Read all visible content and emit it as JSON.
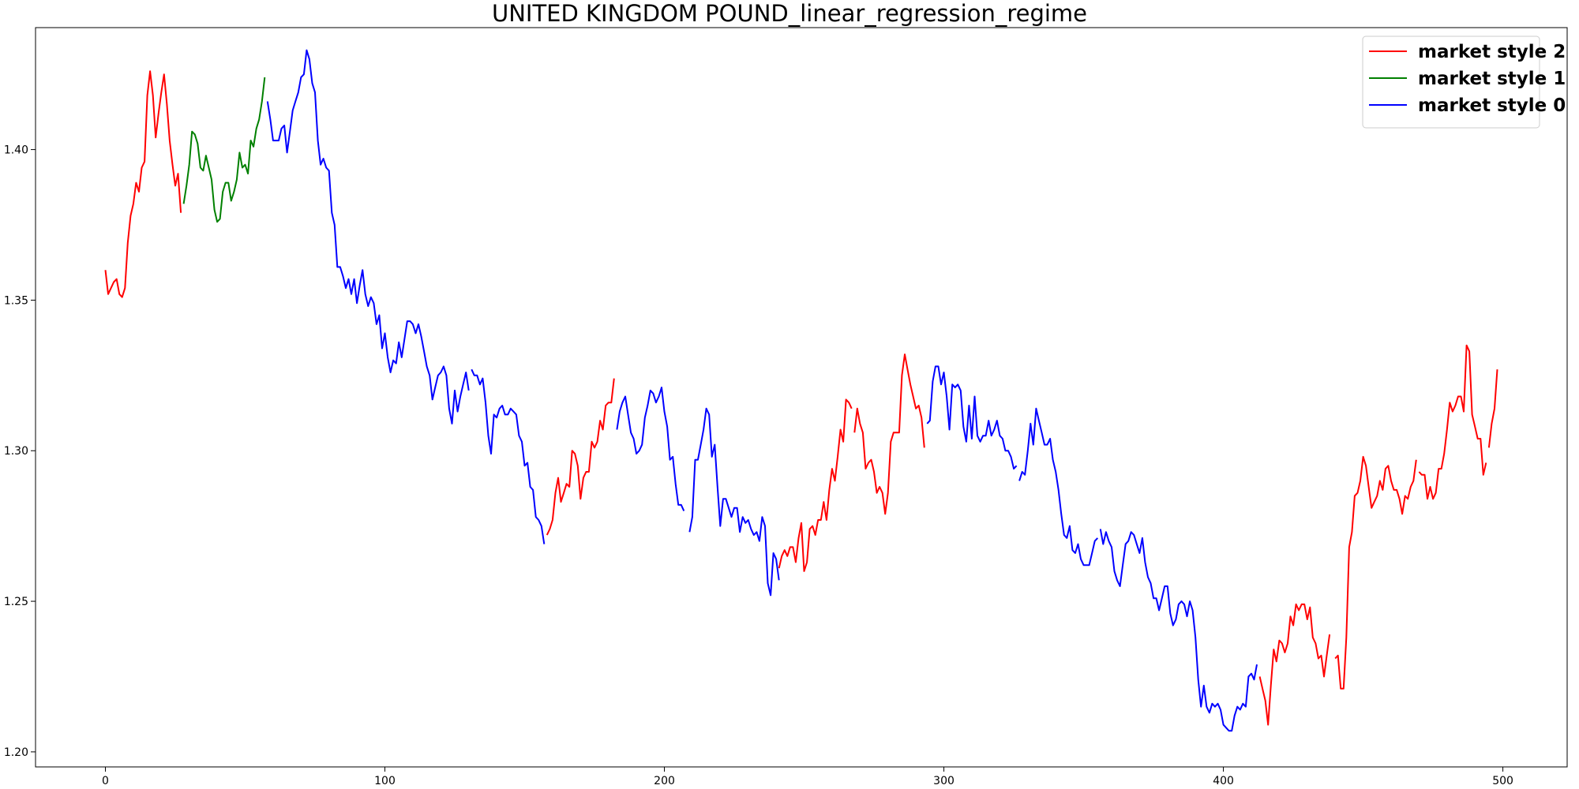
{
  "chart_data": {
    "type": "line",
    "title": "UNITED KINGDOM POUND_linear_regression_regime",
    "xlabel": "",
    "ylabel": "",
    "xlim": [
      -25,
      523
    ],
    "ylim": [
      1.195,
      1.4405
    ],
    "x_ticks": [
      0,
      100,
      200,
      300,
      400,
      500
    ],
    "y_ticks": [
      1.2,
      1.25,
      1.3,
      1.35,
      1.4
    ],
    "y_tick_labels": [
      "1.20",
      "1.25",
      "1.30",
      "1.35",
      "1.40"
    ],
    "grid": false,
    "legend_position": "top-right",
    "legend": [
      {
        "label": "market style 2",
        "color": "#ff0000"
      },
      {
        "label": "market style 1",
        "color": "#008000"
      },
      {
        "label": "market style 0",
        "color": "#0000ff"
      }
    ],
    "segments": [
      {
        "style": 2,
        "color": "#ff0000",
        "x_start": 0,
        "y": [
          1.36,
          1.352,
          1.354,
          1.356,
          1.357,
          1.352,
          1.351,
          1.354,
          1.369,
          1.378,
          1.382,
          1.389,
          1.386,
          1.394,
          1.396,
          1.418,
          1.426,
          1.418,
          1.404,
          1.412,
          1.419,
          1.425,
          1.415,
          1.403,
          1.395,
          1.388,
          1.392,
          1.379
        ]
      },
      {
        "style": 1,
        "color": "#008000",
        "x_start": 28,
        "y": [
          1.382,
          1.388,
          1.395,
          1.406,
          1.405,
          1.402,
          1.394,
          1.393,
          1.398,
          1.394,
          1.39,
          1.38,
          1.376,
          1.377,
          1.386,
          1.389,
          1.389,
          1.383,
          1.386,
          1.39,
          1.399,
          1.394,
          1.395,
          1.392,
          1.403,
          1.401,
          1.407,
          1.41,
          1.416,
          1.424
        ]
      },
      {
        "style": 0,
        "color": "#0000ff",
        "x_start": 58,
        "y": [
          1.416,
          1.41,
          1.403,
          1.403,
          1.403,
          1.407,
          1.408,
          1.399,
          1.406,
          1.413,
          1.416,
          1.419,
          1.424,
          1.425,
          1.433,
          1.43,
          1.422,
          1.419,
          1.403,
          1.395,
          1.397,
          1.394,
          1.393,
          1.379,
          1.375,
          1.361,
          1.361,
          1.358,
          1.354,
          1.357,
          1.352,
          1.357,
          1.349,
          1.355,
          1.36,
          1.352,
          1.348,
          1.351,
          1.349,
          1.342,
          1.345,
          1.334,
          1.339,
          1.331,
          1.326,
          1.33,
          1.329,
          1.336,
          1.331,
          1.337,
          1.343,
          1.343,
          1.342,
          1.339,
          1.342,
          1.338,
          1.333,
          1.328,
          1.325,
          1.317,
          1.321,
          1.325,
          1.326,
          1.328,
          1.325,
          1.314,
          1.309,
          1.32,
          1.313,
          1.318,
          1.322,
          1.326,
          1.32
        ]
      },
      {
        "style": 0,
        "color": "#0000ff",
        "x_start": 131,
        "y": [
          1.327,
          1.325,
          1.325,
          1.322,
          1.324,
          1.316,
          1.305,
          1.299,
          1.312,
          1.311,
          1.314,
          1.315,
          1.312,
          1.312,
          1.314,
          1.313,
          1.312,
          1.305,
          1.303,
          1.295,
          1.296,
          1.288,
          1.287,
          1.278,
          1.277,
          1.275,
          1.269
        ]
      },
      {
        "style": 2,
        "color": "#ff0000",
        "x_start": 158,
        "y": [
          1.272,
          1.274,
          1.277,
          1.286,
          1.291,
          1.283,
          1.286,
          1.289,
          1.288,
          1.3,
          1.299,
          1.295,
          1.284,
          1.291,
          1.293,
          1.293,
          1.303,
          1.301,
          1.303,
          1.31,
          1.307,
          1.315,
          1.316,
          1.316,
          1.324
        ]
      },
      {
        "style": 0,
        "color": "#0000ff",
        "x_start": 183,
        "y": [
          1.307,
          1.313,
          1.316,
          1.318,
          1.312,
          1.306,
          1.304,
          1.299,
          1.3,
          1.302,
          1.311,
          1.315,
          1.32,
          1.319,
          1.316,
          1.318,
          1.321,
          1.313,
          1.308,
          1.297,
          1.298,
          1.289,
          1.282,
          1.282,
          1.28
        ]
      },
      {
        "style": 0,
        "color": "#0000ff",
        "x_start": 209,
        "y": [
          1.273,
          1.278,
          1.297,
          1.297,
          1.302,
          1.307,
          1.314,
          1.312,
          1.298,
          1.302,
          1.288,
          1.275,
          1.284,
          1.284,
          1.281,
          1.278,
          1.281,
          1.281,
          1.273,
          1.278,
          1.276,
          1.277,
          1.274,
          1.272,
          1.273,
          1.27,
          1.278,
          1.275,
          1.256,
          1.252,
          1.266,
          1.264,
          1.257
        ]
      },
      {
        "style": 2,
        "color": "#ff0000",
        "x_start": 241,
        "y": [
          1.261,
          1.265,
          1.267,
          1.265,
          1.268,
          1.268,
          1.263,
          1.271,
          1.276,
          1.26,
          1.263,
          1.274,
          1.275,
          1.272,
          1.277,
          1.277,
          1.283,
          1.277,
          1.287,
          1.294,
          1.29,
          1.298,
          1.307,
          1.303,
          1.317,
          1.316,
          1.314
        ]
      },
      {
        "style": 2,
        "color": "#ff0000",
        "x_start": 268,
        "y": [
          1.306,
          1.314,
          1.309,
          1.306,
          1.294,
          1.296,
          1.297,
          1.293,
          1.286,
          1.288,
          1.286,
          1.279,
          1.286,
          1.303,
          1.306,
          1.306,
          1.306,
          1.325,
          1.332,
          1.327,
          1.322,
          1.318,
          1.314,
          1.315,
          1.311,
          1.301
        ]
      },
      {
        "style": 0,
        "color": "#0000ff",
        "x_start": 294,
        "y": [
          1.309,
          1.31,
          1.323,
          1.328,
          1.328,
          1.322,
          1.326,
          1.318,
          1.307,
          1.322,
          1.321,
          1.322,
          1.32,
          1.308,
          1.303,
          1.315,
          1.304,
          1.318,
          1.305,
          1.303,
          1.305,
          1.305,
          1.31,
          1.305,
          1.307,
          1.31,
          1.305,
          1.304,
          1.3,
          1.3,
          1.298,
          1.294,
          1.295
        ]
      },
      {
        "style": 0,
        "color": "#0000ff",
        "x_start": 327,
        "y": [
          1.29,
          1.293,
          1.292,
          1.3,
          1.309,
          1.302,
          1.314,
          1.31,
          1.306,
          1.302,
          1.302,
          1.304,
          1.297,
          1.293,
          1.287,
          1.279,
          1.272,
          1.271,
          1.275,
          1.267,
          1.266,
          1.269,
          1.264,
          1.262,
          1.262,
          1.262,
          1.266,
          1.27,
          1.271
        ]
      },
      {
        "style": 0,
        "color": "#0000ff",
        "x_start": 356,
        "y": [
          1.274,
          1.269,
          1.273,
          1.27,
          1.268,
          1.26,
          1.257,
          1.255,
          1.262,
          1.269,
          1.27,
          1.273,
          1.272,
          1.269,
          1.266,
          1.271,
          1.263,
          1.258,
          1.256,
          1.251,
          1.251,
          1.247,
          1.251,
          1.255,
          1.255,
          1.246,
          1.242,
          1.244,
          1.249,
          1.25,
          1.249,
          1.245,
          1.25,
          1.247,
          1.238,
          1.224,
          1.215,
          1.222,
          1.215,
          1.213,
          1.216,
          1.215,
          1.216,
          1.214,
          1.209,
          1.208,
          1.207,
          1.207,
          1.212,
          1.215,
          1.214,
          1.216,
          1.215,
          1.225,
          1.226,
          1.224,
          1.229
        ]
      },
      {
        "style": 2,
        "color": "#ff0000",
        "x_start": 413,
        "y": [
          1.225,
          1.221,
          1.217,
          1.209,
          1.222,
          1.234,
          1.23,
          1.237,
          1.236,
          1.233,
          1.236,
          1.245,
          1.242,
          1.249,
          1.247,
          1.249,
          1.249,
          1.244,
          1.248,
          1.238,
          1.236,
          1.231,
          1.232,
          1.225,
          1.232,
          1.239
        ]
      },
      {
        "style": 2,
        "color": "#ff0000",
        "x_start": 440,
        "y": [
          1.231,
          1.232,
          1.221,
          1.221,
          1.238,
          1.268,
          1.273,
          1.285,
          1.286,
          1.29,
          1.298,
          1.295,
          1.288,
          1.281,
          1.283,
          1.285,
          1.29,
          1.287,
          1.294,
          1.295,
          1.29,
          1.287,
          1.287,
          1.284,
          1.279,
          1.285,
          1.284,
          1.288,
          1.29,
          1.297
        ]
      },
      {
        "style": 2,
        "color": "#ff0000",
        "x_start": 470,
        "y": [
          1.293,
          1.292,
          1.292,
          1.284,
          1.288,
          1.284,
          1.286,
          1.294,
          1.294,
          1.299,
          1.307,
          1.316,
          1.313,
          1.315,
          1.318,
          1.318,
          1.313,
          1.335,
          1.333,
          1.312,
          1.308,
          1.304,
          1.304,
          1.292,
          1.296
        ]
      },
      {
        "style": 2,
        "color": "#ff0000",
        "x_start": 495,
        "y": [
          1.301,
          1.309,
          1.314,
          1.327
        ]
      }
    ]
  }
}
